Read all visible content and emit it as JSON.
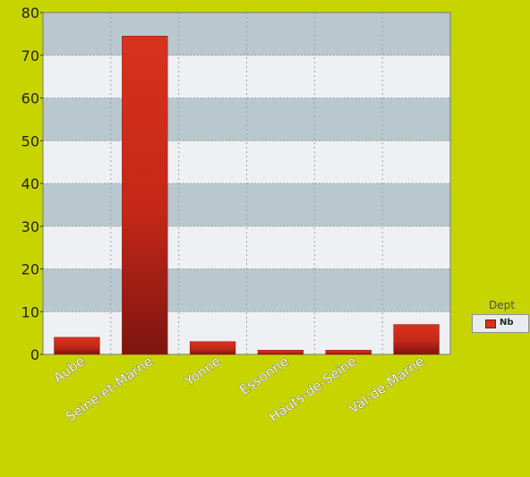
{
  "chart_data": {
    "type": "bar",
    "title": "",
    "xlabel": "",
    "ylabel": "",
    "categories": [
      "Aube",
      "Seine-et-Marne",
      "Yonne",
      "Essonne",
      "Hauts-de-Seine",
      "Val-de-Marne"
    ],
    "series": [
      {
        "name": "Nb",
        "values": [
          4,
          74.5,
          3,
          1,
          1,
          7
        ]
      }
    ],
    "ylim": [
      0,
      80
    ],
    "yticks": [
      0,
      10,
      20,
      30,
      40,
      50,
      60,
      70,
      80
    ],
    "grid": true,
    "legend": {
      "title": "Dept",
      "placement": "right"
    },
    "colors": {
      "bar": "#d8321c",
      "bar_dark": "#7e1410",
      "band_dark": "#b9c7cf",
      "band_light": "#eef0f3",
      "background": "#c8d400"
    }
  }
}
